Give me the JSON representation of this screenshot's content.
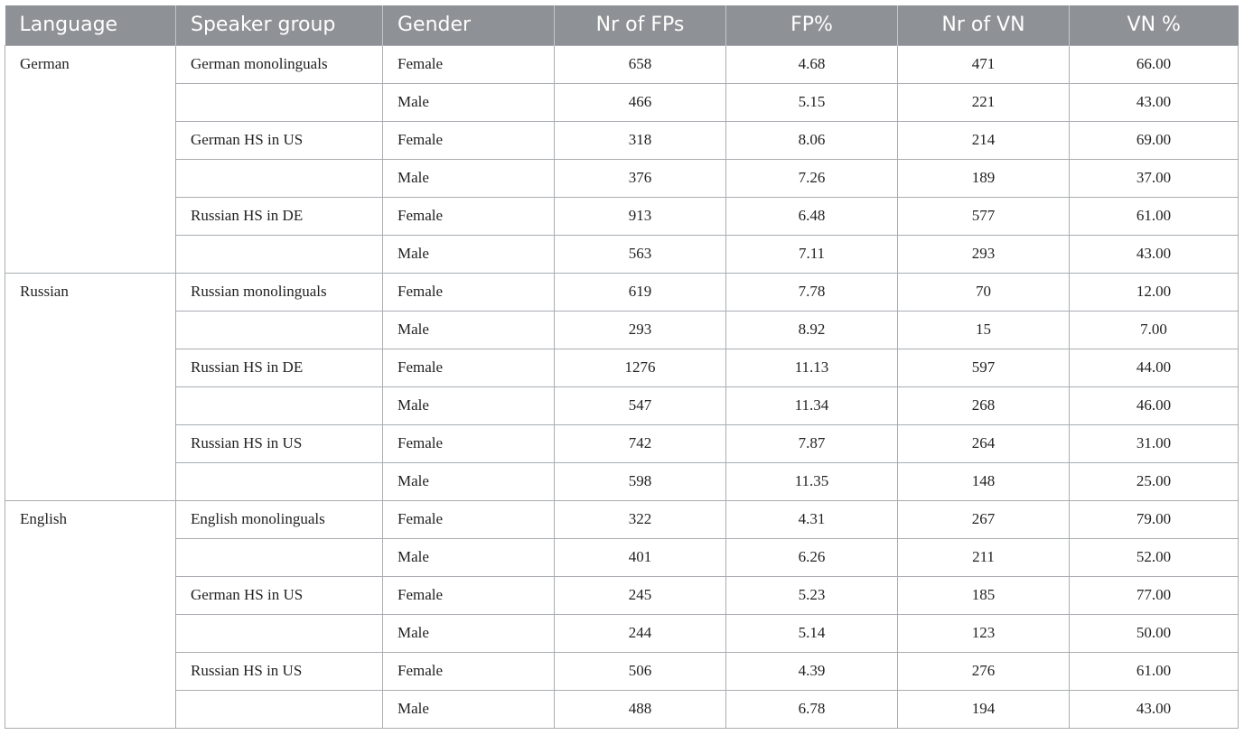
{
  "headers": [
    "Language",
    "Speaker group",
    "Gender",
    "Nr of FPs",
    "FP%",
    "Nr of VN",
    "VN %"
  ],
  "languages": [
    {
      "name": "German",
      "groups": [
        {
          "name": "German monolinguals",
          "rows": [
            {
              "gender": "Female",
              "fps": "658",
              "fp_pct": "4.68",
              "vn": "471",
              "vn_pct": "66.00"
            },
            {
              "gender": "Male",
              "fps": "466",
              "fp_pct": "5.15",
              "vn": "221",
              "vn_pct": "43.00"
            }
          ]
        },
        {
          "name": "German HS in US",
          "rows": [
            {
              "gender": "Female",
              "fps": "318",
              "fp_pct": "8.06",
              "vn": "214",
              "vn_pct": "69.00"
            },
            {
              "gender": "Male",
              "fps": "376",
              "fp_pct": "7.26",
              "vn": "189",
              "vn_pct": "37.00"
            }
          ]
        },
        {
          "name": "Russian HS in DE",
          "rows": [
            {
              "gender": "Female",
              "fps": "913",
              "fp_pct": "6.48",
              "vn": "577",
              "vn_pct": "61.00"
            },
            {
              "gender": "Male",
              "fps": "563",
              "fp_pct": "7.11",
              "vn": "293",
              "vn_pct": "43.00"
            }
          ]
        }
      ]
    },
    {
      "name": "Russian",
      "groups": [
        {
          "name": "Russian monolinguals",
          "rows": [
            {
              "gender": "Female",
              "fps": "619",
              "fp_pct": "7.78",
              "vn": "70",
              "vn_pct": "12.00"
            },
            {
              "gender": "Male",
              "fps": "293",
              "fp_pct": "8.92",
              "vn": "15",
              "vn_pct": "7.00"
            }
          ]
        },
        {
          "name": "Russian HS in DE",
          "rows": [
            {
              "gender": "Female",
              "fps": "1276",
              "fp_pct": "11.13",
              "vn": "597",
              "vn_pct": "44.00"
            },
            {
              "gender": "Male",
              "fps": "547",
              "fp_pct": "11.34",
              "vn": "268",
              "vn_pct": "46.00"
            }
          ]
        },
        {
          "name": "Russian HS in US",
          "rows": [
            {
              "gender": "Female",
              "fps": "742",
              "fp_pct": "7.87",
              "vn": "264",
              "vn_pct": "31.00"
            },
            {
              "gender": "Male",
              "fps": "598",
              "fp_pct": "11.35",
              "vn": "148",
              "vn_pct": "25.00"
            }
          ]
        }
      ]
    },
    {
      "name": "English",
      "groups": [
        {
          "name": "English monolinguals",
          "rows": [
            {
              "gender": "Female",
              "fps": "322",
              "fp_pct": "4.31",
              "vn": "267",
              "vn_pct": "79.00"
            },
            {
              "gender": "Male",
              "fps": "401",
              "fp_pct": "6.26",
              "vn": "211",
              "vn_pct": "52.00"
            }
          ]
        },
        {
          "name": "German HS in US",
          "rows": [
            {
              "gender": "Female",
              "fps": "245",
              "fp_pct": "5.23",
              "vn": "185",
              "vn_pct": "77.00"
            },
            {
              "gender": "Male",
              "fps": "244",
              "fp_pct": "5.14",
              "vn": "123",
              "vn_pct": "50.00"
            }
          ]
        },
        {
          "name": "Russian HS in US",
          "rows": [
            {
              "gender": "Female",
              "fps": "506",
              "fp_pct": "4.39",
              "vn": "276",
              "vn_pct": "61.00"
            },
            {
              "gender": "Male",
              "fps": "488",
              "fp_pct": "6.78",
              "vn": "194",
              "vn_pct": "43.00"
            }
          ]
        }
      ]
    }
  ],
  "colors": {
    "header_bg": "#8e9195",
    "header_text": "#ffffff",
    "border": "#a9adb1"
  }
}
